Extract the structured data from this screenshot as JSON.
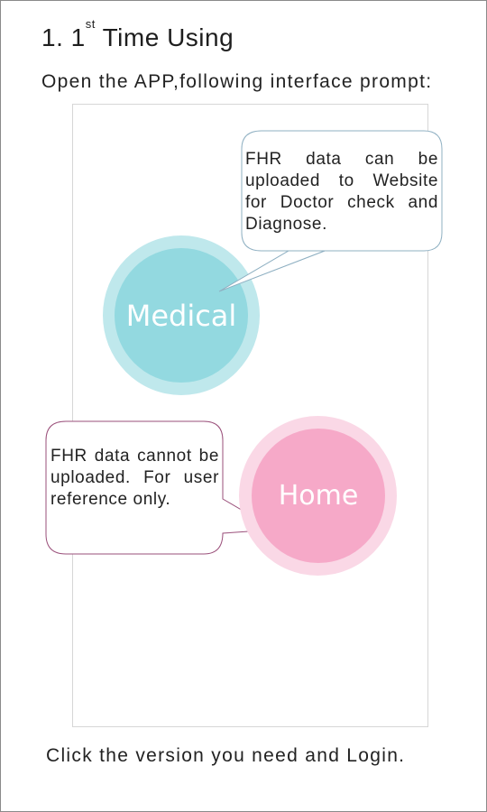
{
  "heading": {
    "number": "1. 1",
    "superscript": "st",
    "title": "Time Using"
  },
  "intro": "Open the APP,following interface prompt:",
  "medical": {
    "label": "Medical",
    "bubble_text": "FHR data can be uploaded to Website for Doctor check and Diagnose.",
    "colors": {
      "outer": "#bfe8ec",
      "inner": "#93d9e0",
      "bubble_border": "#8fb0c2"
    }
  },
  "home": {
    "label": "Home",
    "bubble_text": "FHR data cannot be uploaded. For user reference only.",
    "colors": {
      "outer": "#fad8e6",
      "inner": "#f6a9c8",
      "bubble_border": "#9a4f7a"
    }
  },
  "footer": "Click the version you need and Login."
}
